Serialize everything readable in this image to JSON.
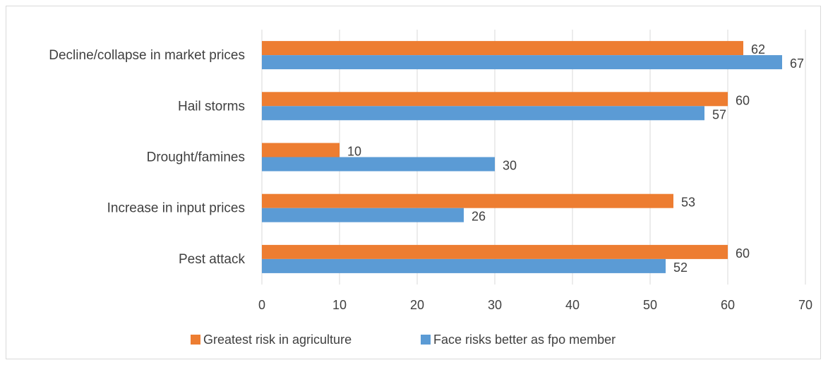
{
  "chart_data": {
    "type": "bar",
    "orientation": "horizontal",
    "categories": [
      "Decline/collapse in market prices",
      "Hail storms",
      "Drought/famines",
      "Increase in input prices",
      "Pest attack"
    ],
    "series": [
      {
        "name": "Greatest risk in agriculture",
        "color": "#ED7D31",
        "values": [
          62,
          60,
          10,
          53,
          60
        ]
      },
      {
        "name": "Face risks better as fpo member",
        "color": "#5B9BD5",
        "values": [
          67,
          57,
          30,
          26,
          52
        ]
      }
    ],
    "xlim": [
      0,
      70
    ],
    "xticks": [
      "0",
      "10",
      "20",
      "30",
      "40",
      "50",
      "60",
      "70"
    ],
    "grid": true,
    "legend": "bottom",
    "title": "",
    "xlabel": "",
    "ylabel": ""
  }
}
